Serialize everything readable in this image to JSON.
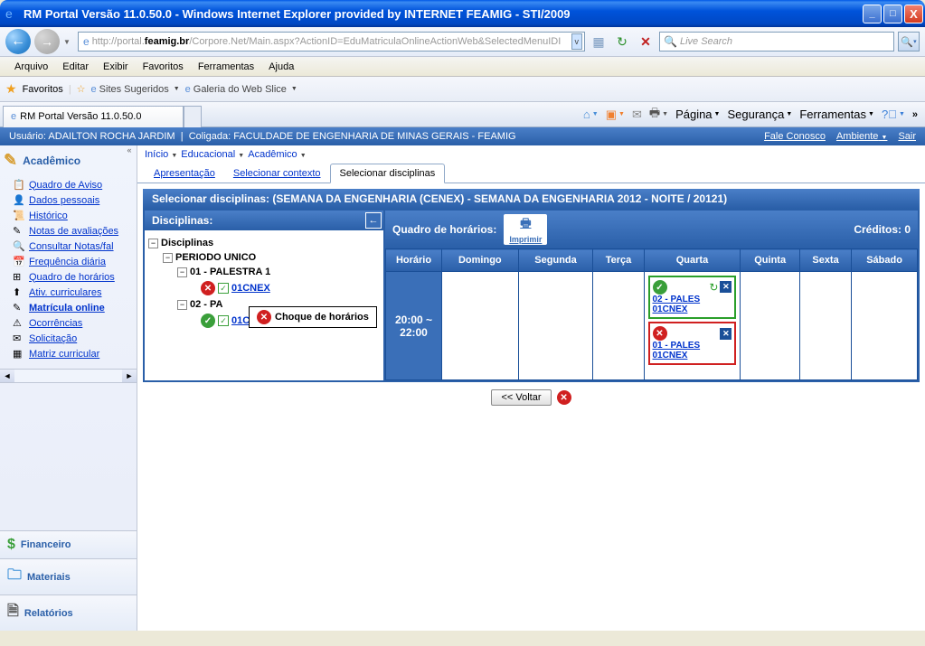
{
  "window": {
    "title": "RM Portal Versão 11.0.50.0 - Windows Internet Explorer provided by INTERNET FEAMIG - STI/2009"
  },
  "address": {
    "prefix": "http://",
    "gray1": "portal.",
    "bold": "feamig.br",
    "gray2": "/Corpore.Net/Main.aspx?ActionID=EduMatriculaOnlineActionWeb&SelectedMenuIDI"
  },
  "search": {
    "placeholder": "Live Search"
  },
  "menu": {
    "items": [
      "Arquivo",
      "Editar",
      "Exibir",
      "Favoritos",
      "Ferramentas",
      "Ajuda"
    ]
  },
  "favbar": {
    "label": "Favoritos",
    "links": [
      "Sites Sugeridos",
      "Galeria do Web Slice"
    ]
  },
  "tab": {
    "title": "RM Portal Versão 11.0.50.0"
  },
  "commandbar": {
    "items": [
      "Página",
      "Segurança",
      "Ferramentas"
    ]
  },
  "header": {
    "user_label": "Usuário: ADAILTON ROCHA JARDIM",
    "coligada": "Coligada: FACULDADE DE ENGENHARIA DE MINAS GERAIS - FEAMIG",
    "fale": "Fale Conosco",
    "ambiente": "Ambiente",
    "sair": "Sair"
  },
  "sidebar": {
    "section": "Acadêmico",
    "items": [
      "Quadro de Aviso",
      "Dados pessoais",
      "Histórico",
      "Notas de avaliações",
      "Consultar Notas/fal",
      "Frequência diária",
      "Quadro de horários",
      "Ativ. curriculares",
      "Matrícula online",
      "Ocorrências",
      "Solicitação",
      "Matriz curricular"
    ],
    "active_index": 8,
    "bottom": [
      "Financeiro",
      "Materiais",
      "Relatórios"
    ]
  },
  "breadcrumb": {
    "items": [
      "Início",
      "Educacional",
      "Acadêmico"
    ]
  },
  "subtabs": {
    "items": [
      "Apresentação",
      "Selecionar contexto",
      "Selecionar disciplinas"
    ],
    "active": 2
  },
  "panel": {
    "title": "Selecionar disciplinas: (SEMANA DA ENGENHARIA (CENEX) - SEMANA DA ENGENHARIA 2012 - NOITE / 20121)"
  },
  "tree": {
    "header": "Disciplinas:",
    "root": "Disciplinas",
    "periodo": "PERIODO UNICO",
    "p1": "01 - PALESTRA 1",
    "p1_code": "01CNEX",
    "p2_prefix": "02 - PA",
    "p2_code": "01CNEX",
    "tooltip": "Choque de horários"
  },
  "schedule": {
    "header": "Quadro de horários:",
    "print": "Imprimir",
    "credits_label": "Créditos: 0",
    "days": [
      "Horário",
      "Domingo",
      "Segunda",
      "Terça",
      "Quarta",
      "Quinta",
      "Sexta",
      "Sábado"
    ],
    "time": "20:00 ~ 22:00",
    "slot1": {
      "line1": "02 - PALES",
      "line2": "01CNEX"
    },
    "slot2": {
      "line1": "01 - PALES",
      "line2": "01CNEX"
    }
  },
  "footer": {
    "voltar": "<< Voltar"
  }
}
